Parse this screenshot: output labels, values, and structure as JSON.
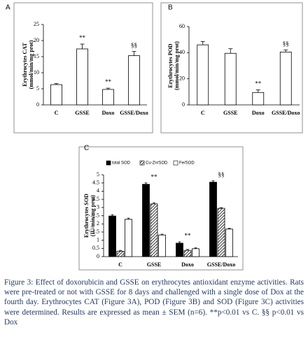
{
  "chart_data": [
    {
      "type": "bar",
      "panel": "A",
      "ylabel": [
        "Erythrocytes CAT",
        "(mmol/min/mg prot)"
      ],
      "categories": [
        "C",
        "GSSE",
        "Doxo",
        "GSSE/Doxo"
      ],
      "values": [
        6.3,
        17.4,
        4.8,
        15.3
      ],
      "errors": [
        0.3,
        1.5,
        0.4,
        1.3
      ],
      "annotations": [
        null,
        "**",
        "**",
        "§§"
      ],
      "color": "#ffffff",
      "ylim": [
        0,
        25
      ],
      "yticks": [
        0,
        5,
        10,
        15,
        20,
        25
      ]
    },
    {
      "type": "bar",
      "panel": "B",
      "ylabel": [
        "Erythrocytes POD",
        "(mmol/min/mg prot)"
      ],
      "categories": [
        "C",
        "GSSE",
        "Doxo",
        "GSSE/Doxo"
      ],
      "values": [
        46,
        39.5,
        9.5,
        40.5
      ],
      "errors": [
        2.5,
        3.5,
        2,
        1.5
      ],
      "annotations": [
        null,
        null,
        "**",
        "§§"
      ],
      "color": "#ffffff",
      "ylim": [
        0,
        60
      ],
      "yticks": [
        0,
        20,
        40,
        60
      ]
    },
    {
      "type": "grouped_bar",
      "panel": "C",
      "ylabel": [
        "Erythrocytes SOD",
        "(IU/min/mg prot)"
      ],
      "categories": [
        "C",
        "GSSE",
        "Doxo",
        "GSSE/Doxo"
      ],
      "series": [
        {
          "name": "total SOD",
          "color": "#000000",
          "values": [
            2.48,
            4.42,
            0.82,
            4.55
          ],
          "errors": [
            0.08,
            0.08,
            0.08,
            0.08
          ]
        },
        {
          "name": "Cu-Zn/SOD",
          "color": "#000000",
          "hatch": true,
          "values": [
            0.33,
            3.22,
            0.38,
            2.95
          ],
          "errors": [
            0.05,
            0.07,
            0.06,
            0.04
          ]
        },
        {
          "name": "Fe/SOD",
          "color": "#ffffff",
          "values": [
            2.28,
            1.32,
            0.48,
            1.68
          ],
          "errors": [
            0.07,
            0.05,
            0.06,
            0.05
          ]
        }
      ],
      "annotations": [
        null,
        "**",
        "**",
        "§§"
      ],
      "ylim": [
        0,
        5
      ],
      "yticks": [
        0,
        0.5,
        1,
        1.5,
        2,
        2.5,
        3,
        3.5,
        4,
        4.5,
        5
      ]
    }
  ],
  "caption": "Figure 3: Effect of doxorubicin and GSSE on erythrocytes antioxidant enzyme activities. Rats were pre-treated or not with GSSE for 8 days and challenged with a single dose of Dox at the fourth day. Erythrocytes CAT (Figure 3A), POD (Figure 3B) and SOD (Figure 3C) activities were determined. Results are expressed as mean ± SEM (n=6). **p<0.01 vs C. §§ p<0.01 vs Dox"
}
